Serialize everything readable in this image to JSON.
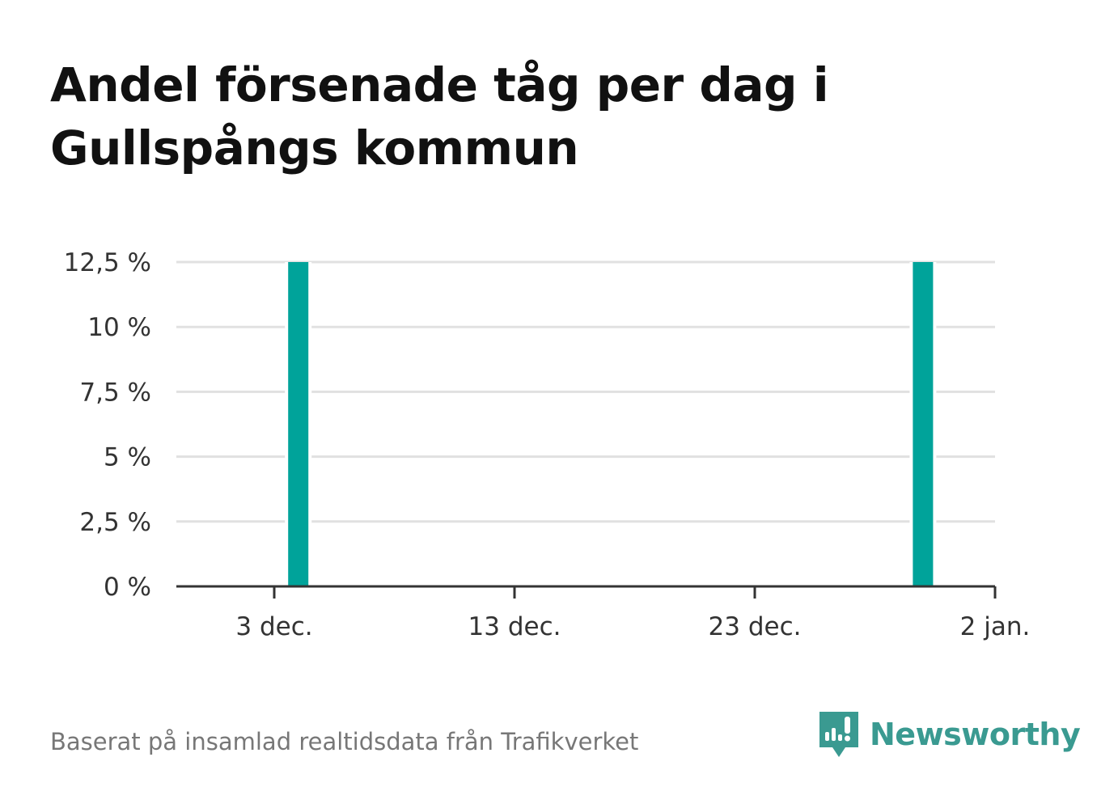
{
  "colors": {
    "bar": "#00a39a",
    "grid": "#e1e1e1",
    "axis": "#333333",
    "brand": "#3a9a91"
  },
  "chart_data": {
    "type": "bar",
    "title": "Andel försenade tåg per dag i Gullspångs kommun",
    "xlabel": "",
    "ylabel": "",
    "x_ticks": [
      "3 dec.",
      "13 dec.",
      "23 dec.",
      "2 jan."
    ],
    "y_ticks": [
      "0 %",
      "2,5 %",
      "5 %",
      "7,5 %",
      "10 %",
      "12,5 %"
    ],
    "ylim": [
      0,
      12.5
    ],
    "grid": true,
    "series": [
      {
        "dates": [
          "2023-12-04",
          "2023-12-30"
        ],
        "values": [
          12.5,
          12.5
        ]
      }
    ]
  },
  "footer": {
    "source": "Baserat på insamlad realtidsdata från Trafikverket",
    "brand": "Newsworthy"
  }
}
